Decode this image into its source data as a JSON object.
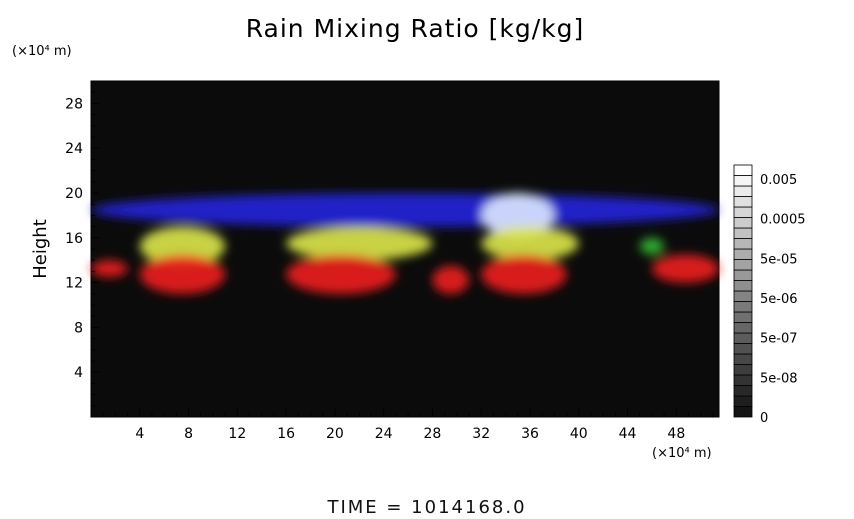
{
  "chart_data": {
    "type": "heatmap",
    "title": "Rain Mixing Ratio [kg/kg]",
    "xlabel": "",
    "ylabel": "Height",
    "x_unit": "(×10⁴ m)",
    "y_unit": "(×10⁴ m)",
    "xlim": [
      0,
      51.5
    ],
    "ylim": [
      0,
      30
    ],
    "xticks": [
      4,
      8,
      12,
      16,
      20,
      24,
      28,
      32,
      36,
      40,
      44,
      48
    ],
    "yticks": [
      4,
      8,
      12,
      16,
      20,
      24,
      28
    ],
    "colorbar": {
      "labels": [
        "0.005",
        "0.0005",
        "5e-05",
        "5e-06",
        "5e-07",
        "5e-08",
        "0"
      ]
    },
    "background": "#0b0b0b",
    "regions": [
      {
        "color": "#2222dd",
        "x": [
          0,
          51.5
        ],
        "y": [
          17,
          20
        ],
        "level": "blue"
      },
      {
        "color": "#dde8ff",
        "x": [
          32,
          38
        ],
        "y": [
          16,
          20
        ],
        "level": "white"
      },
      {
        "color": "#dde84a",
        "x": [
          4,
          11
        ],
        "y": [
          13.5,
          17
        ],
        "level": "yellow"
      },
      {
        "color": "#dde84a",
        "x": [
          16,
          28
        ],
        "y": [
          14,
          17
        ],
        "level": "yellow"
      },
      {
        "color": "#dde84a",
        "x": [
          32,
          40
        ],
        "y": [
          14,
          17
        ],
        "level": "yellow"
      },
      {
        "color": "#ee1c1c",
        "x": [
          0,
          3
        ],
        "y": [
          12.5,
          14
        ],
        "level": "red"
      },
      {
        "color": "#ee1c1c",
        "x": [
          4,
          11
        ],
        "y": [
          11,
          14.5
        ],
        "level": "red"
      },
      {
        "color": "#ee1c1c",
        "x": [
          16,
          25
        ],
        "y": [
          11,
          14.5
        ],
        "level": "red"
      },
      {
        "color": "#ee1c1c",
        "x": [
          28,
          31
        ],
        "y": [
          11,
          13.5
        ],
        "level": "red"
      },
      {
        "color": "#ee1c1c",
        "x": [
          32,
          39
        ],
        "y": [
          11,
          14.5
        ],
        "level": "red"
      },
      {
        "color": "#ee1c1c",
        "x": [
          46,
          51.5
        ],
        "y": [
          12,
          14.5
        ],
        "level": "red"
      },
      {
        "color": "#33bb33",
        "x": [
          45,
          47
        ],
        "y": [
          14.5,
          16
        ],
        "level": "green"
      }
    ]
  },
  "time_label": "TIME = 1014168.0"
}
